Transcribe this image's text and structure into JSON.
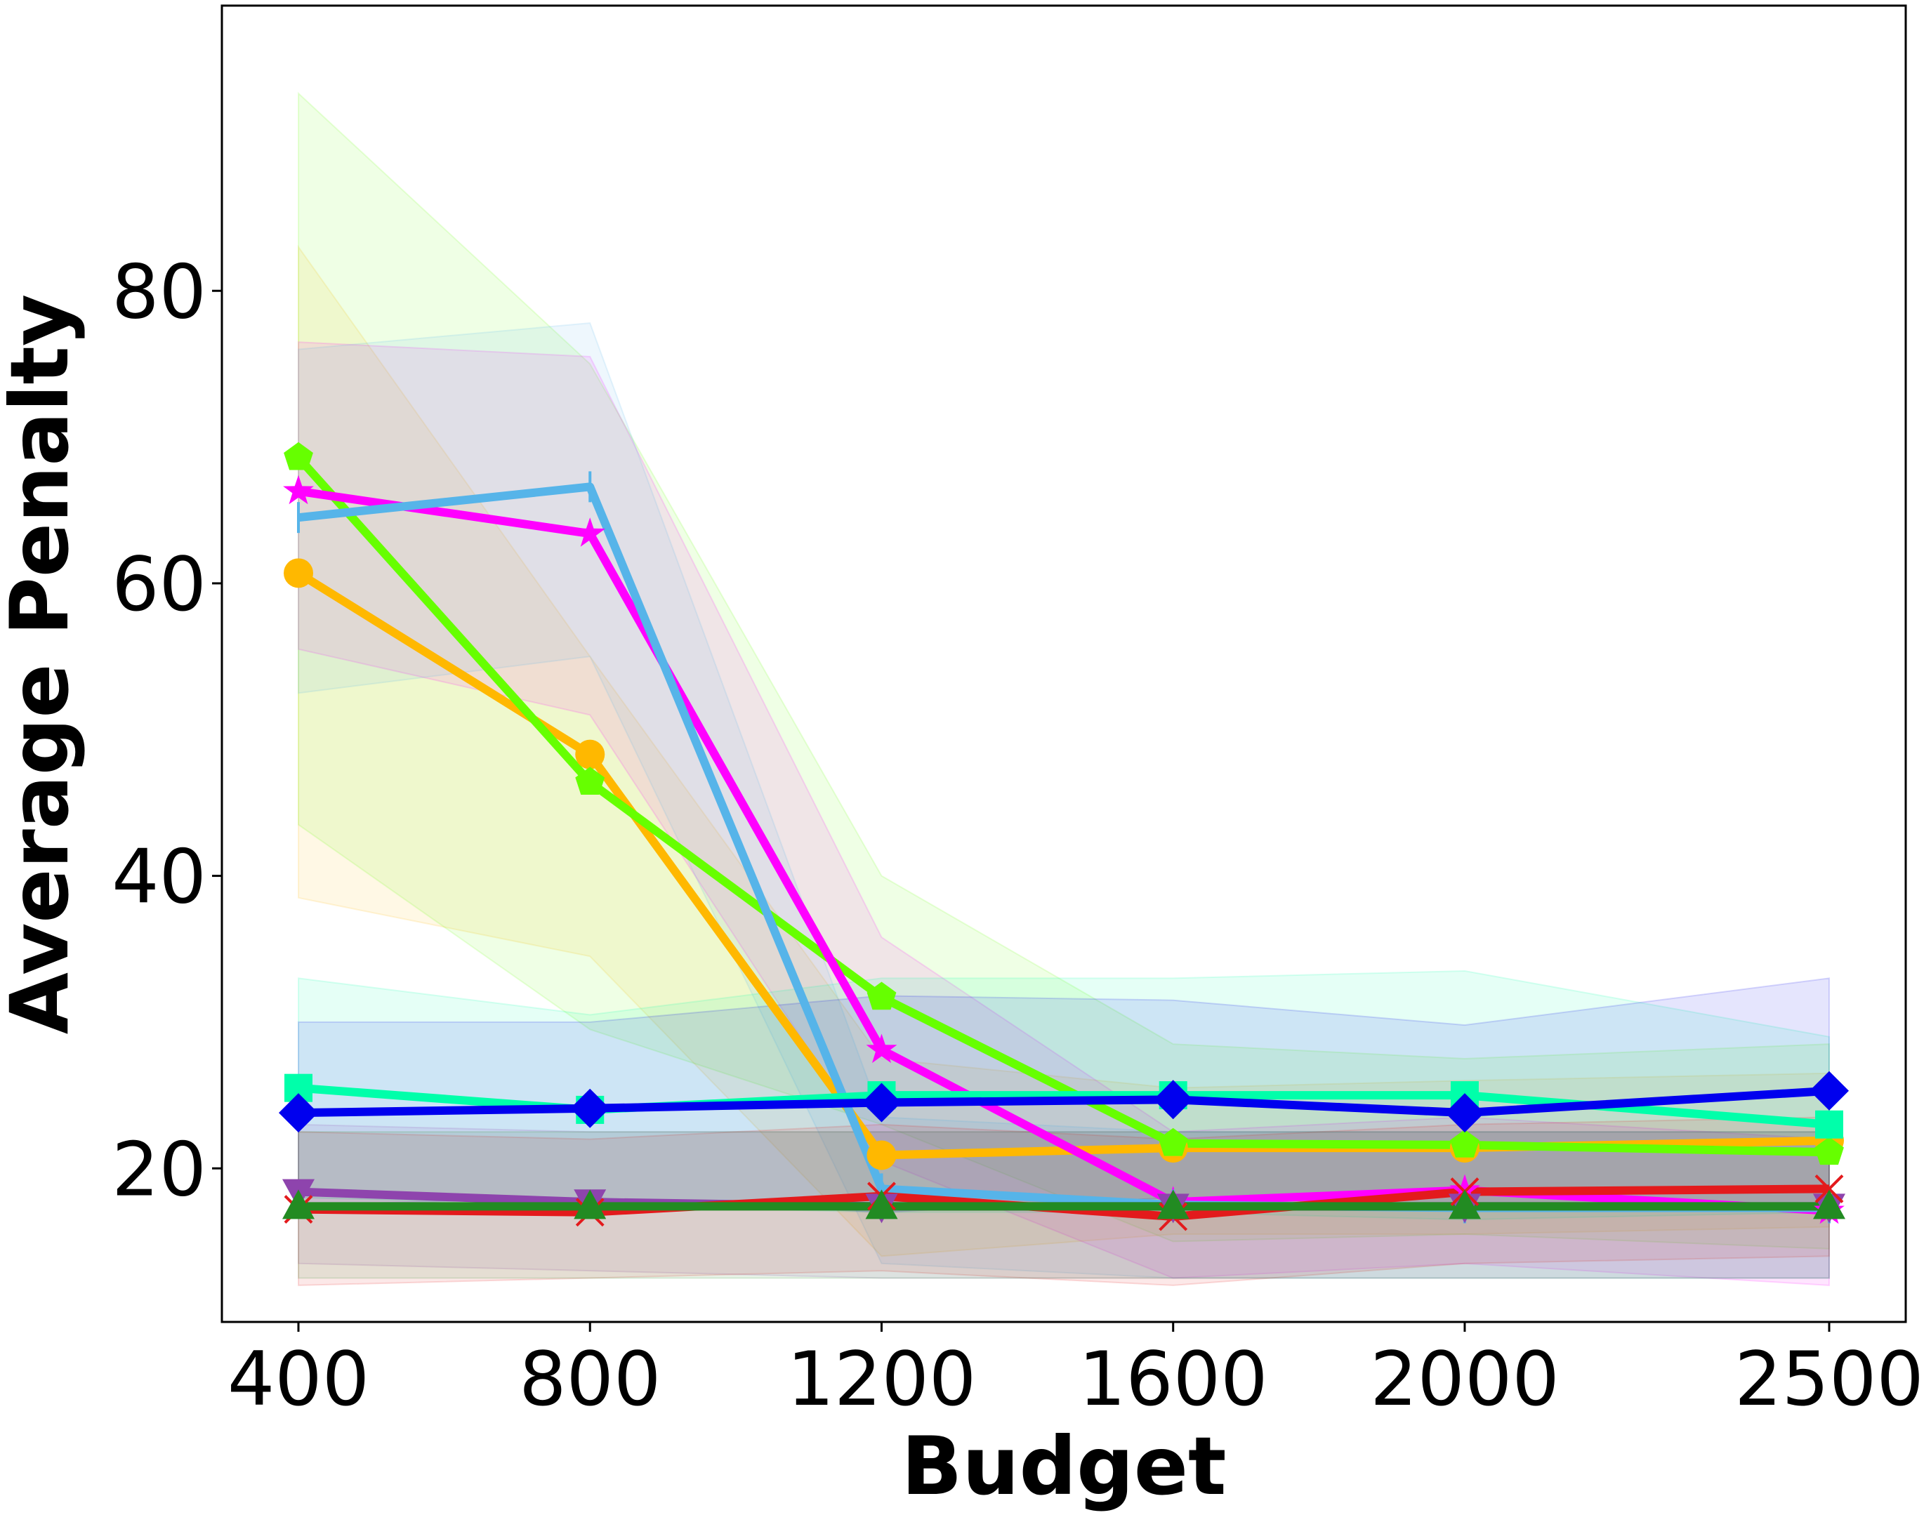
{
  "chart_data": {
    "type": "line",
    "title": "",
    "xlabel": "Budget",
    "ylabel": "Average Penalty",
    "x": [
      400,
      800,
      1200,
      1600,
      2000,
      2500
    ],
    "x_tick_labels": [
      "400",
      "800",
      "1200",
      "1600",
      "2000",
      "2500"
    ],
    "xlim": [
      295,
      2605
    ],
    "ylim": [
      9.5,
      99.5
    ],
    "y_ticks": [
      20,
      40,
      60,
      80
    ],
    "y_tick_labels": [
      "20",
      "40",
      "60",
      "80"
    ],
    "grid": false,
    "legend": "none",
    "series": [
      {
        "color": "#FFB800",
        "marker": "circle",
        "values": [
          60.7,
          48.3,
          20.9,
          21.4,
          21.4,
          21.9
        ],
        "upper": [
          83.0,
          55.0,
          27.5,
          25.5,
          26.0,
          26.5
        ],
        "lower": [
          38.5,
          34.5,
          14.0,
          15.5,
          15.5,
          16.0
        ]
      },
      {
        "color": "#66FF00",
        "marker": "pentagon",
        "values": [
          68.6,
          46.4,
          31.7,
          21.7,
          21.6,
          21.1
        ],
        "upper": [
          93.5,
          75.0,
          40.0,
          28.5,
          27.5,
          28.5
        ],
        "lower": [
          43.5,
          29.5,
          23.0,
          15.0,
          15.5,
          14.5
        ]
      },
      {
        "color": "#FF00FF",
        "marker": "star",
        "values": [
          66.3,
          63.4,
          28.1,
          17.7,
          18.5,
          17.1
        ],
        "upper": [
          76.5,
          75.5,
          35.8,
          22.5,
          23.5,
          22.0
        ],
        "lower": [
          55.5,
          51.0,
          20.5,
          12.5,
          13.5,
          12.0
        ]
      },
      {
        "color": "#56B4E9",
        "marker": "vline",
        "values": [
          64.5,
          66.6,
          18.6,
          17.5,
          17.3,
          17.3
        ],
        "upper": [
          76.0,
          77.8,
          23.5,
          22.5,
          22.5,
          22.5
        ],
        "lower": [
          52.5,
          55.0,
          13.5,
          12.5,
          12.5,
          12.5
        ]
      },
      {
        "color": "#00FFAA",
        "marker": "square",
        "values": [
          25.5,
          24.0,
          25.0,
          25.0,
          25.0,
          23.0
        ],
        "upper": [
          33.0,
          30.5,
          33.0,
          33.0,
          33.5,
          29.0
        ],
        "lower": [
          18.0,
          17.5,
          17.0,
          17.0,
          16.5,
          17.0
        ]
      },
      {
        "color": "#0000EE",
        "marker": "diamond",
        "values": [
          23.8,
          24.1,
          24.5,
          24.7,
          23.8,
          25.3
        ],
        "upper": [
          30.0,
          30.0,
          31.8,
          31.5,
          29.8,
          33.0
        ],
        "lower": [
          17.5,
          18.0,
          17.0,
          18.0,
          17.5,
          17.5
        ]
      },
      {
        "color": "#8E44AD",
        "marker": "triangle-down",
        "values": [
          18.4,
          17.7,
          17.4,
          17.4,
          17.4,
          17.4
        ],
        "upper": [
          23.0,
          22.5,
          22.5,
          22.5,
          22.5,
          22.5
        ],
        "lower": [
          13.5,
          13.0,
          12.5,
          12.5,
          12.5,
          12.5
        ]
      },
      {
        "color": "#E31A1C",
        "marker": "x",
        "values": [
          17.2,
          17.0,
          18.1,
          16.7,
          18.4,
          18.6
        ],
        "upper": [
          22.5,
          22.0,
          23.0,
          22.0,
          23.0,
          23.5
        ],
        "lower": [
          12.0,
          12.5,
          13.0,
          12.0,
          13.5,
          14.0
        ]
      },
      {
        "color": "#228B22",
        "marker": "triangle-up",
        "values": [
          17.4,
          17.4,
          17.4,
          17.4,
          17.4,
          17.4
        ],
        "upper": [
          22.5,
          22.5,
          22.5,
          22.5,
          22.5,
          22.5
        ],
        "lower": [
          12.5,
          12.5,
          12.5,
          12.5,
          12.5,
          12.5
        ]
      }
    ]
  }
}
